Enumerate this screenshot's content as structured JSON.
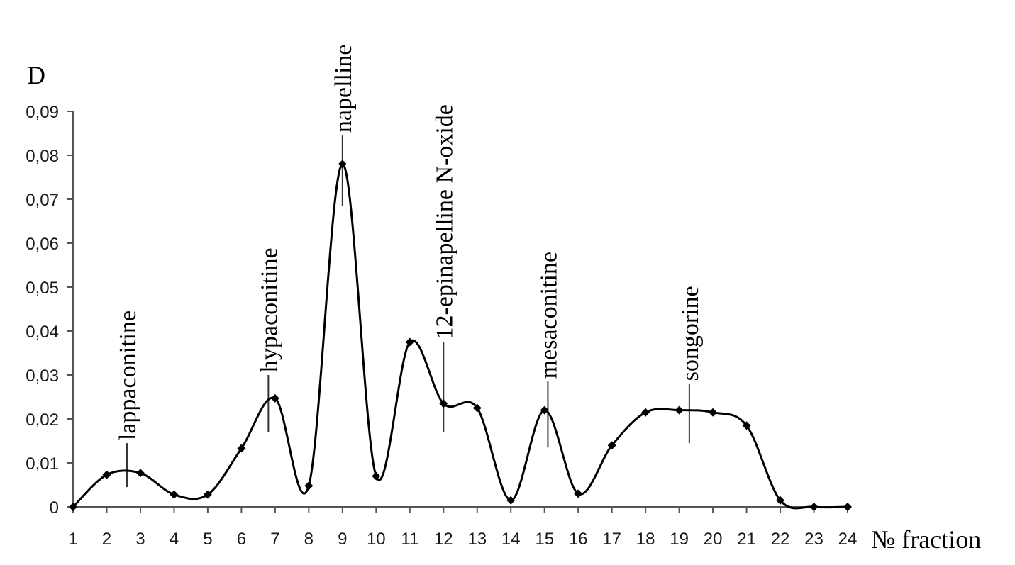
{
  "chart_data": {
    "type": "line",
    "ylabel": "D",
    "xlabel": "№ fraction",
    "ylim": [
      0,
      0.09
    ],
    "xlim": [
      1,
      24
    ],
    "yticks": [
      0,
      0.01,
      0.02,
      0.03,
      0.04,
      0.05,
      0.06,
      0.07,
      0.08,
      0.09
    ],
    "ytick_labels": [
      "0",
      "0,01",
      "0,02",
      "0,03",
      "0,04",
      "0,05",
      "0,06",
      "0,07",
      "0,08",
      "0,09"
    ],
    "xticks": [
      1,
      2,
      3,
      4,
      5,
      6,
      7,
      8,
      9,
      10,
      11,
      12,
      13,
      14,
      15,
      16,
      17,
      18,
      19,
      20,
      21,
      22,
      23,
      24
    ],
    "xtick_labels": [
      "1",
      "2",
      "3",
      "4",
      "5",
      "6",
      "7",
      "8",
      "9",
      "10",
      "11",
      "12",
      "13",
      "14",
      "15",
      "16",
      "17",
      "18",
      "19",
      "20",
      "21",
      "22",
      "23",
      "24"
    ],
    "series": [
      {
        "color": "#000000",
        "x": [
          1,
          2,
          3,
          4,
          5,
          6,
          7,
          8,
          9,
          10,
          11,
          12,
          13,
          14,
          15,
          16,
          17,
          18,
          19,
          20,
          21,
          22,
          23,
          24
        ],
        "values": [
          0.0,
          0.0073,
          0.0077,
          0.0028,
          0.0028,
          0.0133,
          0.0247,
          0.0048,
          0.078,
          0.007,
          0.0375,
          0.0235,
          0.0225,
          0.0015,
          0.022,
          0.003,
          0.014,
          0.0215,
          0.022,
          0.0215,
          0.0185,
          0.0015,
          0.0,
          0.0
        ]
      }
    ],
    "annotations": [
      {
        "text": "lappaconitine",
        "x": 2.6,
        "y_top": 0.0145,
        "y_bottom": 0.0045
      },
      {
        "text": "hypaconitine",
        "x": 6.8,
        "y_top": 0.03,
        "y_bottom": 0.017
      },
      {
        "text": "napelline",
        "x": 9.0,
        "y_top": 0.0845,
        "y_bottom": 0.0685
      },
      {
        "text": "12-epinapelline N-oxide",
        "x": 12.0,
        "y_top": 0.0375,
        "y_bottom": 0.017
      },
      {
        "text": "mesaconitine",
        "x": 15.1,
        "y_top": 0.0285,
        "y_bottom": 0.0135
      },
      {
        "text": "songorine",
        "x": 19.3,
        "y_top": 0.028,
        "y_bottom": 0.0145
      }
    ],
    "grid": false,
    "legend": "none"
  }
}
